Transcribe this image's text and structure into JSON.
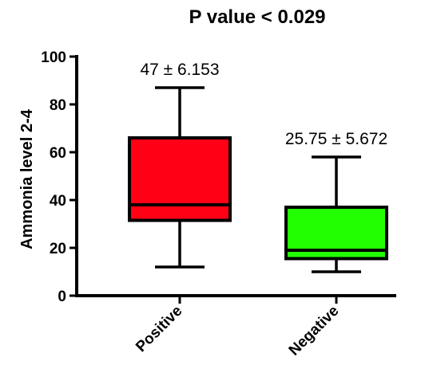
{
  "chart_data": {
    "type": "box",
    "title": "P value < 0.029",
    "ylabel": "Ammonia level  2-4",
    "xlabel": "",
    "ylim": [
      0,
      100
    ],
    "yticks": [
      0,
      20,
      40,
      60,
      80,
      100
    ],
    "grid": false,
    "categories": [
      "Positive",
      "Negative"
    ],
    "boxes": [
      {
        "category": "Positive",
        "min": 12,
        "q1": 31.5,
        "median": 38,
        "q3": 66,
        "max": 87,
        "color": "#ff0015",
        "annotation": "47 ± 6.153"
      },
      {
        "category": "Negative",
        "min": 10,
        "q1": 15.5,
        "median": 19,
        "q3": 37,
        "max": 58,
        "color": "#21ff00",
        "annotation": "25.75 ± 5.672"
      }
    ]
  }
}
